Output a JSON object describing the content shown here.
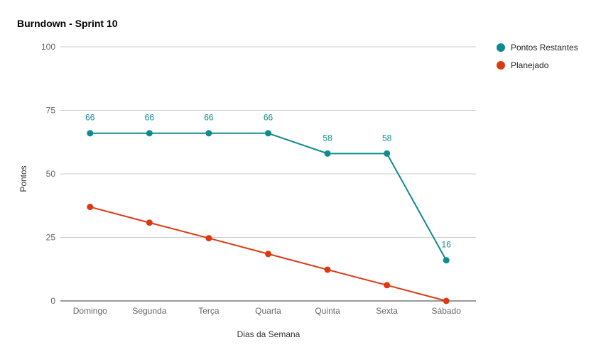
{
  "chart_data": {
    "type": "line",
    "title": "Burndown - Sprint 10",
    "xlabel": "Dias da Semana",
    "ylabel": "Pontos",
    "categories": [
      "Domingo",
      "Segunda",
      "Terça",
      "Quarta",
      "Quinta",
      "Sexta",
      "Sábado"
    ],
    "ylim": [
      0,
      100
    ],
    "yticks": [
      0,
      25,
      50,
      75,
      100
    ],
    "grid": true,
    "legend_position": "top-right",
    "series": [
      {
        "name": "Pontos Restantes",
        "color": "#0f8b8d",
        "values": [
          66,
          66,
          66,
          66,
          58,
          58,
          16
        ],
        "data_labels": [
          "66",
          "66",
          "66",
          "66",
          "58",
          "58",
          "16"
        ]
      },
      {
        "name": "Planejado",
        "color": "#dc3912",
        "values": [
          37,
          30.8,
          24.7,
          18.5,
          12.3,
          6.2,
          0
        ]
      }
    ]
  }
}
